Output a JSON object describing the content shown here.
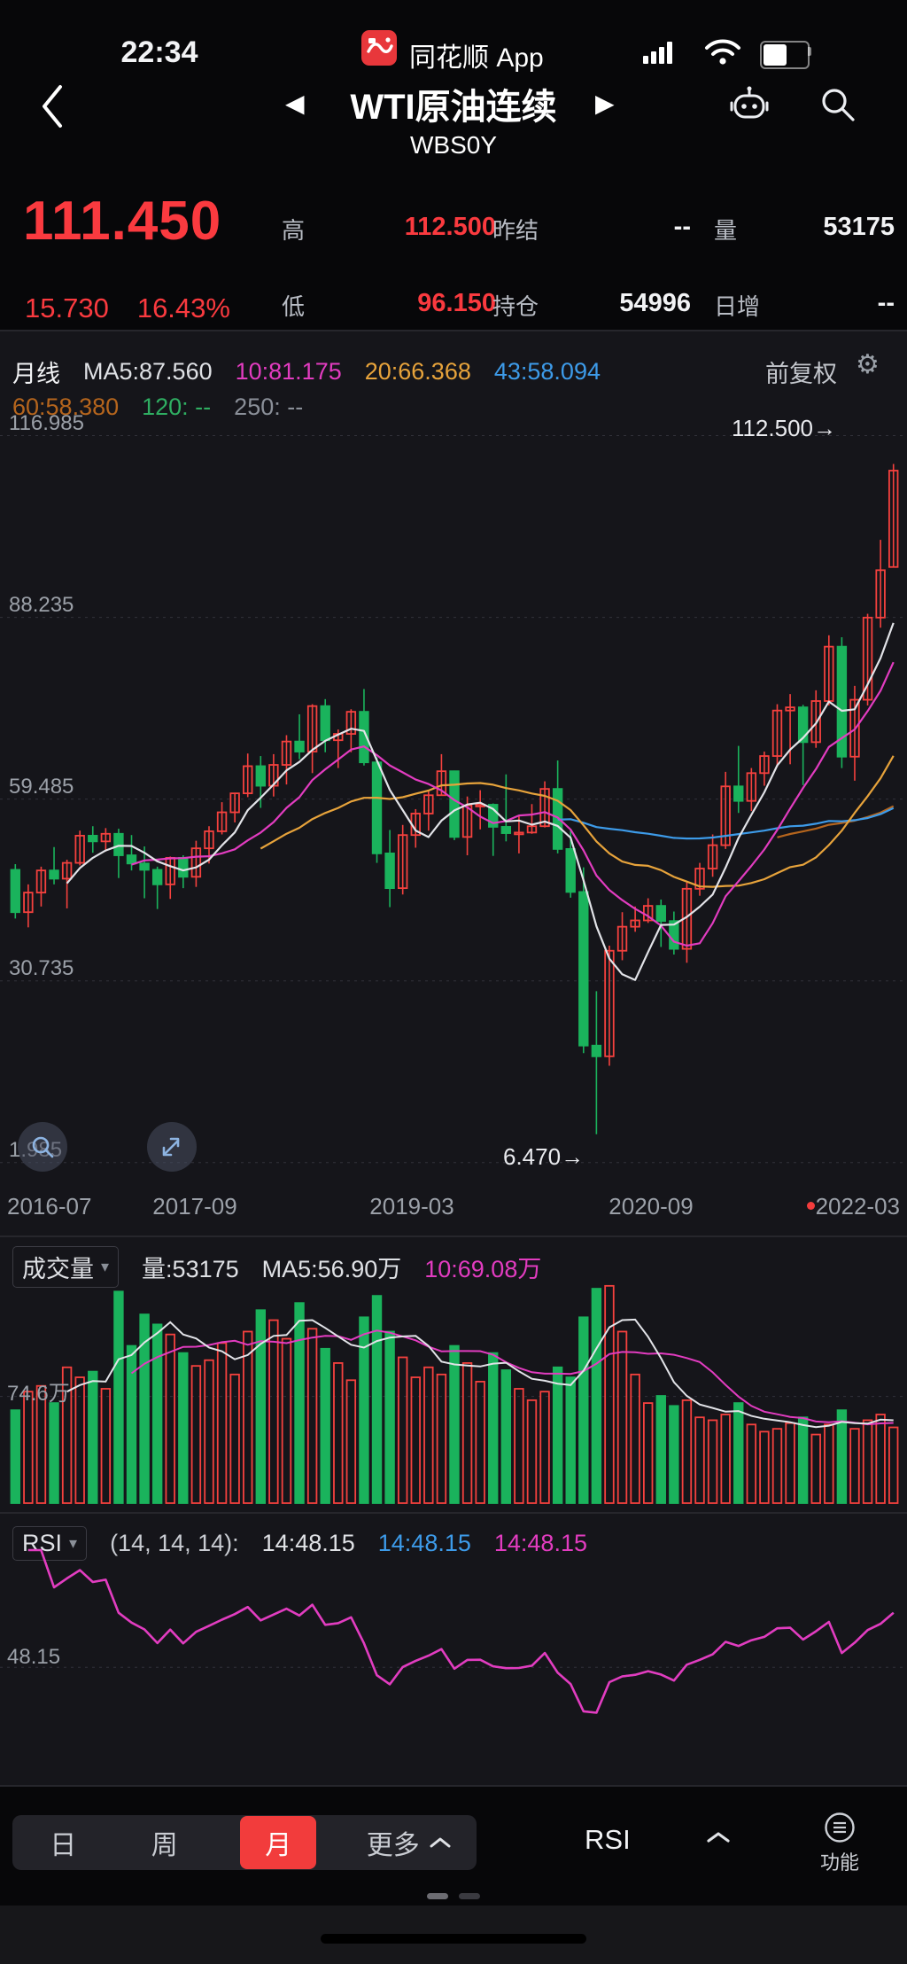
{
  "status_bar": {
    "time": "22:34",
    "app_name": "同花顺 App",
    "battery_level": "55%",
    "icons": [
      "cellular-signal-icon",
      "wifi-icon",
      "battery-icon"
    ]
  },
  "nav": {
    "title": "WTI原油连续",
    "code": "WBS0Y",
    "prev_arrow": "◀",
    "next_arrow": "▶"
  },
  "quote": {
    "price": "111.450",
    "change": "15.730",
    "change_pct": "16.43%",
    "fields": [
      {
        "label": "高",
        "value": "112.500"
      },
      {
        "label": "昨结",
        "value": "--"
      },
      {
        "label": "量",
        "value": "53175"
      },
      {
        "label": "低",
        "value": "96.150"
      },
      {
        "label": "持仓",
        "value": "54996"
      },
      {
        "label": "日增",
        "value": "--"
      }
    ]
  },
  "chart_header": {
    "period": "月线",
    "ma5": "MA5:87.560",
    "ma10": "10:81.175",
    "ma20": "20:66.368",
    "ma43": "43:58.094",
    "ma60": "60:58.380",
    "ma120": "120: --",
    "ma250": "250: --",
    "adjust": "前复权",
    "gear": "⚙",
    "caret": "▾"
  },
  "main_chart": {
    "y_labels": [
      "116.985",
      "88.235",
      "59.485",
      "30.735",
      "1.985"
    ],
    "x_labels": [
      "2016-07",
      "2017-09",
      "2019-03",
      "2020-09",
      "2022-03"
    ],
    "high_annotation": "112.500→",
    "low_annotation": "6.470→"
  },
  "volume_pane": {
    "title": "成交量",
    "volume": "量:53175",
    "ma5": "MA5:56.90万",
    "ma10": "10:69.08万",
    "grid_label": "74.6万"
  },
  "rsi_pane": {
    "title": "RSI",
    "params": "(14, 14, 14):",
    "value1": "14:48.15",
    "value2": "14:48.15",
    "value3": "14:48.15",
    "grid_label": "48.15"
  },
  "toolbar": {
    "day": "日",
    "week": "周",
    "month": "月",
    "more": "更多",
    "indicator": "RSI",
    "functions": "功能"
  },
  "colors": {
    "up": "#f5413e",
    "down": "#1ab35c",
    "ma5": "#e2e3e8",
    "ma10": "#e23cc0",
    "ma20": "#e7a33b",
    "ma43": "#3d9be9",
    "ma60": "#b5651d",
    "accent_red": "#fa3a3f",
    "pane_bg": "#15151a",
    "grid": "#32323a"
  },
  "chart_data": {
    "type": "candlestick",
    "symbol": "WBS0Y",
    "period": "monthly",
    "start_month": "2016-07",
    "x_labels": [
      "2016-07",
      "2017-09",
      "2019-03",
      "2020-09",
      "2022-03"
    ],
    "y_ticks": [
      116.985,
      88.235,
      59.485,
      30.735,
      1.985
    ],
    "price_axis": {
      "min": 0,
      "max": 120
    },
    "ma_periods": [
      5,
      10,
      20,
      43,
      60
    ],
    "volume_ma_periods": [
      5,
      10
    ],
    "rsi_period": 14,
    "volume_grid": 74.6,
    "volume_max": 155,
    "rsi_grid": 48.15,
    "ohlcv": [
      [
        48.3,
        49.2,
        40.6,
        41.6,
        65
      ],
      [
        41.6,
        46.0,
        39.2,
        44.7,
        78
      ],
      [
        44.7,
        48.8,
        42.5,
        48.2,
        82
      ],
      [
        48.2,
        51.9,
        46.0,
        46.9,
        70
      ],
      [
        46.9,
        49.9,
        42.2,
        49.4,
        95
      ],
      [
        49.4,
        54.5,
        49.0,
        53.7,
        88
      ],
      [
        53.7,
        55.2,
        51.0,
        52.8,
        92
      ],
      [
        52.8,
        54.9,
        51.2,
        54.0,
        80
      ],
      [
        54.0,
        54.8,
        47.0,
        50.6,
        148
      ],
      [
        50.6,
        53.8,
        48.2,
        49.3,
        110
      ],
      [
        49.3,
        52.0,
        43.8,
        48.3,
        132
      ],
      [
        48.3,
        48.8,
        42.1,
        46.0,
        125
      ],
      [
        46.0,
        50.4,
        43.7,
        50.2,
        118
      ],
      [
        50.2,
        50.6,
        45.4,
        47.2,
        105
      ],
      [
        47.2,
        52.9,
        45.6,
        51.7,
        96
      ],
      [
        51.7,
        55.2,
        49.3,
        54.4,
        100
      ],
      [
        54.4,
        59.0,
        53.9,
        57.4,
        112
      ],
      [
        57.4,
        60.5,
        55.8,
        60.4,
        90
      ],
      [
        60.4,
        66.7,
        59.8,
        64.7,
        120
      ],
      [
        64.7,
        66.3,
        58.1,
        61.6,
        135
      ],
      [
        61.6,
        66.6,
        59.9,
        64.9,
        128
      ],
      [
        64.9,
        69.6,
        61.8,
        68.6,
        115
      ],
      [
        68.6,
        72.9,
        65.8,
        67.0,
        140
      ],
      [
        67.0,
        74.5,
        63.6,
        74.2,
        122
      ],
      [
        74.2,
        75.3,
        66.9,
        68.8,
        108
      ],
      [
        68.8,
        70.5,
        64.4,
        69.8,
        98
      ],
      [
        69.8,
        73.7,
        66.9,
        73.3,
        86
      ],
      [
        73.3,
        76.9,
        64.8,
        65.3,
        130
      ],
      [
        65.3,
        66.1,
        49.4,
        50.9,
        145
      ],
      [
        50.9,
        54.6,
        42.4,
        45.4,
        120
      ],
      [
        45.4,
        55.4,
        44.4,
        53.8,
        102
      ],
      [
        53.8,
        57.9,
        51.8,
        57.2,
        88
      ],
      [
        57.2,
        60.7,
        54.5,
        60.1,
        95
      ],
      [
        60.1,
        66.6,
        60.0,
        63.9,
        90
      ],
      [
        63.9,
        64.0,
        53.0,
        53.5,
        110
      ],
      [
        53.5,
        59.9,
        50.6,
        58.5,
        98
      ],
      [
        58.5,
        60.9,
        54.7,
        58.6,
        85
      ],
      [
        58.6,
        58.8,
        50.5,
        55.1,
        105
      ],
      [
        55.1,
        63.4,
        52.8,
        54.1,
        93
      ],
      [
        54.1,
        56.9,
        50.9,
        54.2,
        80
      ],
      [
        54.2,
        58.7,
        54.0,
        55.2,
        72
      ],
      [
        55.2,
        62.3,
        55.0,
        61.1,
        78
      ],
      [
        61.1,
        65.6,
        50.9,
        51.6,
        95
      ],
      [
        51.6,
        54.7,
        43.9,
        44.8,
        88
      ],
      [
        44.8,
        48.7,
        19.3,
        20.5,
        130
      ],
      [
        20.5,
        29.1,
        6.47,
        18.8,
        150
      ],
      [
        18.8,
        36.3,
        17.3,
        35.5,
        152
      ],
      [
        35.5,
        41.6,
        34.0,
        39.3,
        120
      ],
      [
        39.3,
        42.5,
        38.5,
        40.3,
        90
      ],
      [
        40.3,
        43.8,
        39.9,
        42.6,
        70
      ],
      [
        42.6,
        43.6,
        36.1,
        40.2,
        75
      ],
      [
        40.2,
        41.7,
        34.9,
        35.8,
        68
      ],
      [
        35.8,
        46.3,
        33.6,
        45.3,
        72
      ],
      [
        45.3,
        49.4,
        44.2,
        48.5,
        60
      ],
      [
        48.5,
        53.9,
        47.2,
        52.2,
        58
      ],
      [
        52.2,
        63.8,
        51.6,
        61.5,
        62
      ],
      [
        61.5,
        67.9,
        57.3,
        59.2,
        70
      ],
      [
        59.2,
        64.4,
        57.6,
        63.6,
        55
      ],
      [
        63.6,
        67.0,
        61.6,
        66.3,
        50
      ],
      [
        66.3,
        74.5,
        64.6,
        73.5,
        52
      ],
      [
        73.5,
        76.1,
        65.0,
        74.0,
        56
      ],
      [
        74.0,
        74.4,
        61.7,
        68.5,
        60
      ],
      [
        68.5,
        76.7,
        67.6,
        75.0,
        48
      ],
      [
        75.0,
        85.4,
        74.3,
        83.6,
        55
      ],
      [
        83.6,
        85.1,
        64.4,
        66.2,
        65
      ],
      [
        66.2,
        77.4,
        62.4,
        75.2,
        52
      ],
      [
        75.2,
        88.8,
        74.3,
        88.2,
        58
      ],
      [
        88.2,
        100.5,
        86.6,
        95.7,
        62
      ],
      [
        96.2,
        112.5,
        96.15,
        111.45,
        53
      ]
    ]
  }
}
